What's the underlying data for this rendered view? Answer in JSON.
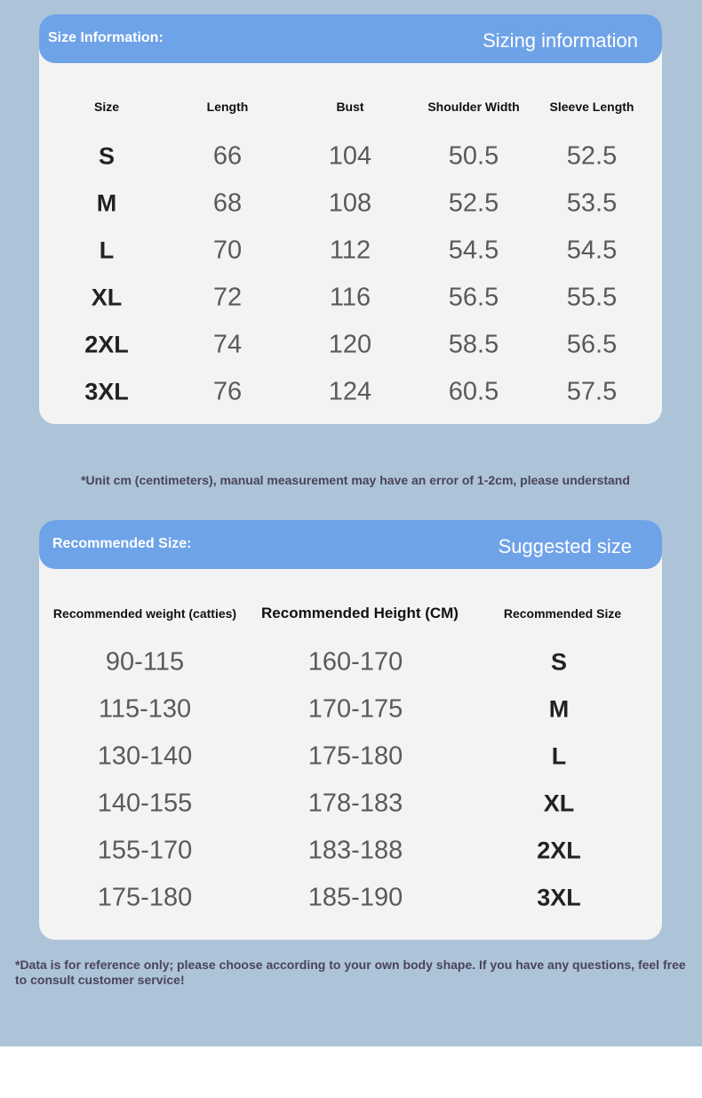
{
  "colors": {
    "background": "#adc3d8",
    "header": "#6fa3e8",
    "card": "#f3f3f4"
  },
  "size_info": {
    "title_left": "Size Information:",
    "title_right": "Sizing information",
    "headers": [
      "Size",
      "Length",
      "Bust",
      "Shoulder Width",
      "Sleeve Length"
    ],
    "rows": [
      [
        "S",
        "66",
        "104",
        "50.5",
        "52.5"
      ],
      [
        "M",
        "68",
        "108",
        "52.5",
        "53.5"
      ],
      [
        "L",
        "70",
        "112",
        "54.5",
        "54.5"
      ],
      [
        "XL",
        "72",
        "116",
        "56.5",
        "55.5"
      ],
      [
        "2XL",
        "74",
        "120",
        "58.5",
        "56.5"
      ],
      [
        "3XL",
        "76",
        "124",
        "60.5",
        "57.5"
      ]
    ]
  },
  "unit_note": "*Unit cm (centimeters), manual measurement may have an error of 1-2cm, please understand",
  "recommended": {
    "title_left": "Recommended Size:",
    "title_right": "Suggested size",
    "headers": [
      "Recommended weight (catties)",
      "Recommended Height (CM)",
      "Recommended Size"
    ],
    "rows": [
      [
        "90-115",
        "160-170",
        "S"
      ],
      [
        "115-130",
        "170-175",
        "M"
      ],
      [
        "130-140",
        "175-180",
        "L"
      ],
      [
        "140-155",
        "178-183",
        "XL"
      ],
      [
        "155-170",
        "183-188",
        "2XL"
      ],
      [
        "175-180",
        "185-190",
        "3XL"
      ]
    ]
  },
  "footer_note": "*Data is for reference only; please choose according to your own body shape. If you have any questions, feel free to consult customer service!"
}
